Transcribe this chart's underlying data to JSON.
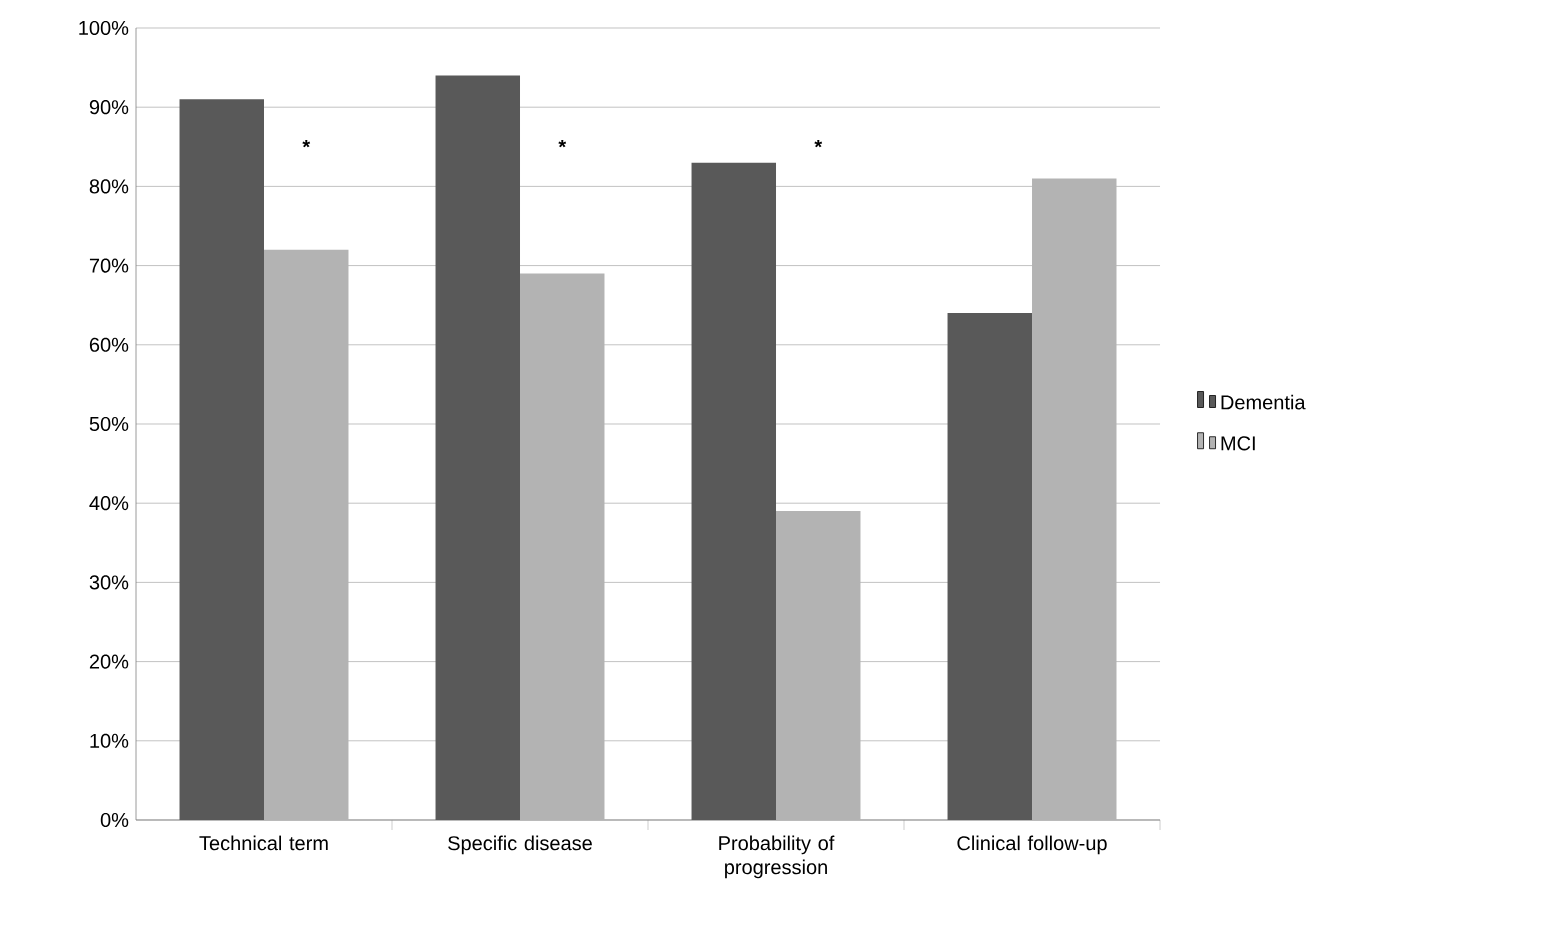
{
  "chart_data": {
    "type": "bar",
    "categories": [
      "Technical term",
      "Specific disease",
      "Probability of progression",
      "Clinical follow-up"
    ],
    "series": [
      {
        "name": "Dementia",
        "color": "#595959",
        "values": [
          91,
          94,
          83,
          64
        ]
      },
      {
        "name": "MCI",
        "color": "#b3b3b3",
        "values": [
          72,
          69,
          39,
          81
        ]
      }
    ],
    "ylim": [
      0,
      100
    ],
    "yticks": [
      {
        "value": 0,
        "label": "0%"
      },
      {
        "value": 10,
        "label": "10%"
      },
      {
        "value": 20,
        "label": "20%"
      },
      {
        "value": 30,
        "label": "30%"
      },
      {
        "value": 40,
        "label": "40%"
      },
      {
        "value": 50,
        "label": "50%"
      },
      {
        "value": 60,
        "label": "60%"
      },
      {
        "value": 70,
        "label": "70%"
      },
      {
        "value": 80,
        "label": "80%"
      },
      {
        "value": 90,
        "label": "90%"
      },
      {
        "value": 100,
        "label": "100%"
      }
    ],
    "grid": "y",
    "legend": "right",
    "annotations": [
      "*",
      "*",
      "*"
    ]
  }
}
